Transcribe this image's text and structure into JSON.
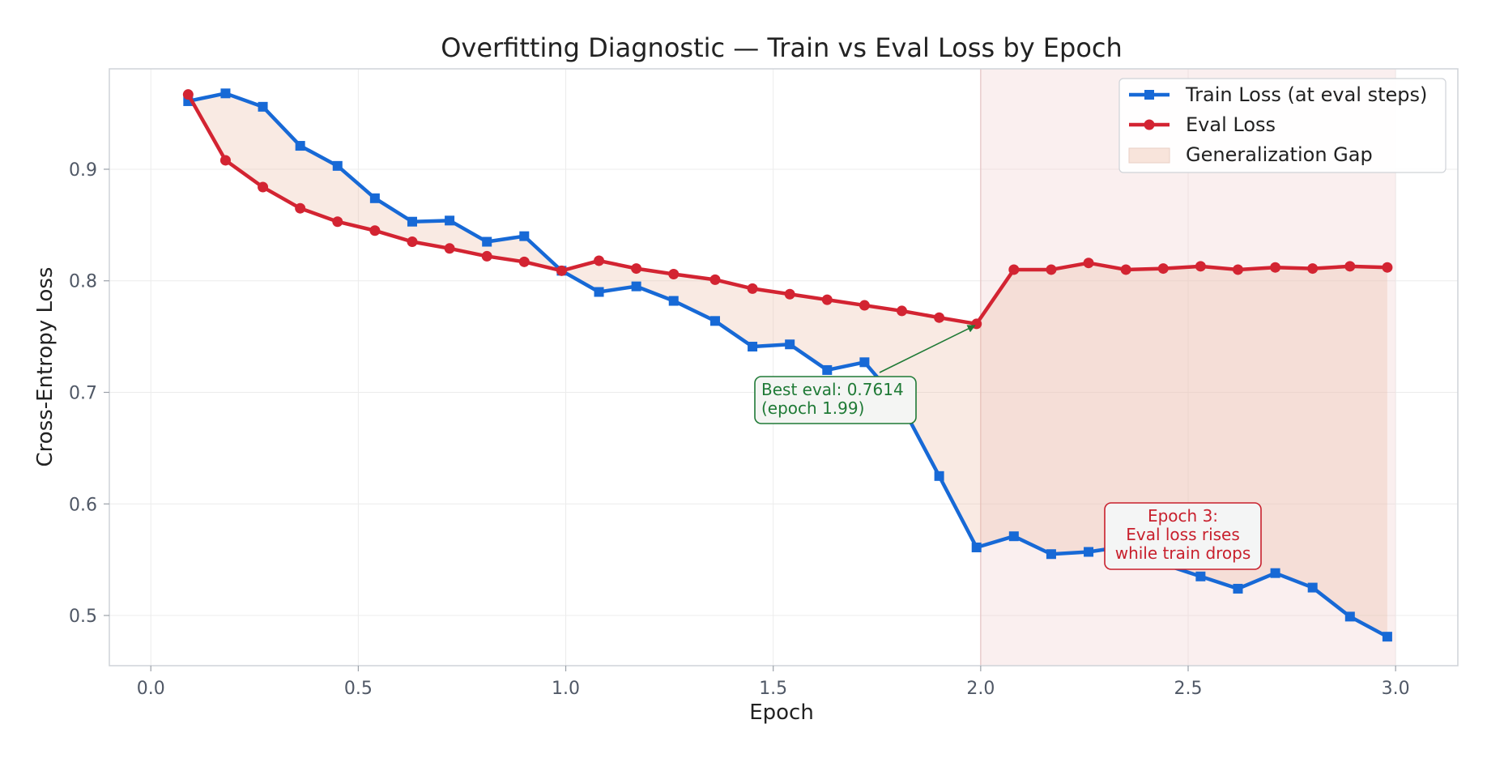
{
  "chart_data": {
    "type": "line",
    "title": "Overfitting Diagnostic — Train vs Eval Loss by Epoch",
    "xlabel": "Epoch",
    "ylabel": "Cross-Entropy Loss",
    "xlim": [
      -0.1,
      3.15
    ],
    "ylim": [
      0.455,
      0.99
    ],
    "xticks": [
      0.0,
      0.5,
      1.0,
      1.5,
      2.0,
      2.5,
      3.0
    ],
    "xtick_labels": [
      "0.0",
      "0.5",
      "1.0",
      "1.5",
      "2.0",
      "2.5",
      "3.0"
    ],
    "yticks": [
      0.5,
      0.6,
      0.7,
      0.8,
      0.9
    ],
    "ytick_labels": [
      "0.5",
      "0.6",
      "0.7",
      "0.8",
      "0.9"
    ],
    "grid": true,
    "legend_position": "top-right",
    "x": [
      0.09,
      0.18,
      0.27,
      0.36,
      0.45,
      0.54,
      0.63,
      0.72,
      0.81,
      0.9,
      0.99,
      1.08,
      1.17,
      1.26,
      1.36,
      1.45,
      1.54,
      1.63,
      1.72,
      1.81,
      1.9,
      1.99,
      2.08,
      2.17,
      2.26,
      2.35,
      2.44,
      2.53,
      2.62,
      2.71,
      2.8,
      2.89,
      2.98
    ],
    "series": [
      {
        "name": "Train Loss (at eval steps)",
        "color": "#1769d6",
        "marker": "square",
        "values": [
          0.961,
          0.968,
          0.956,
          0.921,
          0.903,
          0.874,
          0.853,
          0.854,
          0.835,
          0.84,
          0.809,
          0.79,
          0.795,
          0.782,
          0.764,
          0.741,
          0.743,
          0.72,
          0.727,
          0.688,
          0.625,
          0.561,
          0.571,
          0.555,
          0.557,
          0.562,
          0.546,
          0.535,
          0.524,
          0.538,
          0.525,
          0.499,
          0.481
        ]
      },
      {
        "name": "Eval Loss",
        "color": "#d32432",
        "marker": "circle",
        "values": [
          0.967,
          0.908,
          0.884,
          0.865,
          0.853,
          0.845,
          0.835,
          0.829,
          0.822,
          0.817,
          0.809,
          0.818,
          0.811,
          0.806,
          0.801,
          0.793,
          0.788,
          0.783,
          0.778,
          0.773,
          0.767,
          0.7614,
          0.81,
          0.81,
          0.816,
          0.81,
          0.811,
          0.813,
          0.81,
          0.812,
          0.811,
          0.813,
          0.812
        ]
      }
    ],
    "fill_between": {
      "name": "Generalization Gap",
      "color": "#ebb59a"
    },
    "shaded_region": {
      "x_range": [
        2.0,
        3.0
      ],
      "color": "#f0c9c9"
    },
    "annotations": [
      {
        "lines": [
          "Best eval: 0.7614",
          "(epoch 1.99)"
        ],
        "point": [
          1.99,
          0.7614
        ],
        "color": "#1f7a36"
      },
      {
        "lines": [
          "Epoch 3:",
          "Eval loss rises",
          "while train drops"
        ],
        "color": "#c8202d"
      }
    ]
  }
}
